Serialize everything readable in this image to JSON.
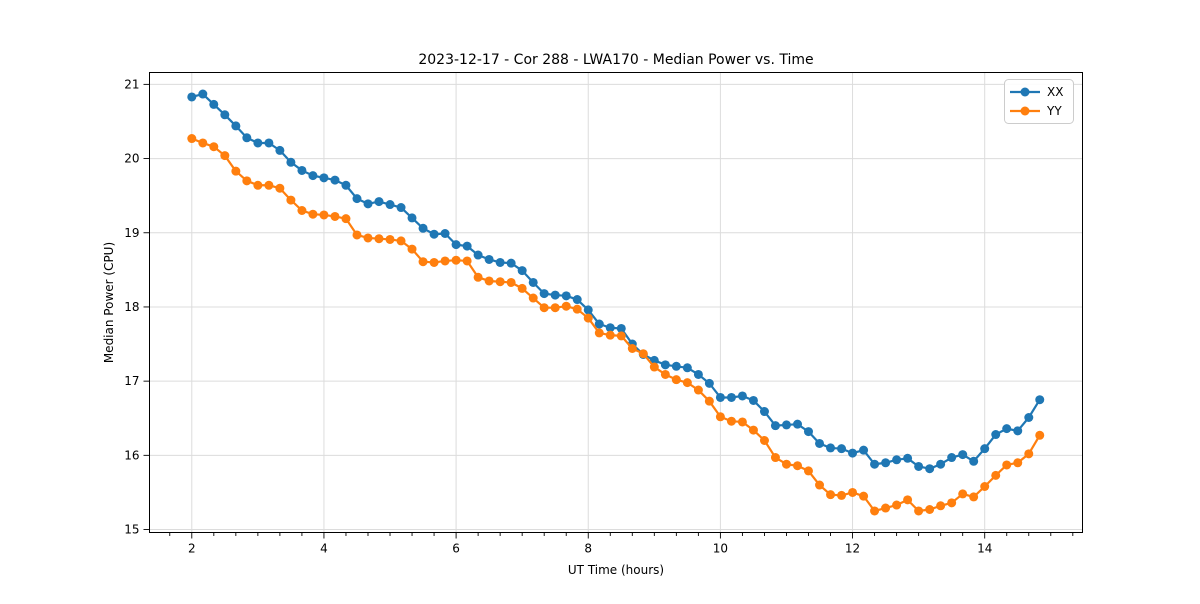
{
  "chart_data": {
    "type": "line",
    "title": "2023-12-17 - Cor 288 - LWA170 - Median Power vs. Time",
    "xlabel": "UT Time (hours)",
    "ylabel": "Median Power (CPU)",
    "xlim": [
      1.36,
      15.48
    ],
    "ylim": [
      14.96,
      21.16
    ],
    "xticks": [
      2,
      4,
      6,
      8,
      10,
      12,
      14
    ],
    "yticks": [
      15,
      16,
      17,
      18,
      19,
      20,
      21
    ],
    "minor_ticks_x_step": 0.3333,
    "grid": true,
    "legend_position": "upper right",
    "marker": "circle",
    "x": [
      2.0,
      2.167,
      2.333,
      2.5,
      2.667,
      2.833,
      3.0,
      3.167,
      3.333,
      3.5,
      3.667,
      3.833,
      4.0,
      4.167,
      4.333,
      4.5,
      4.667,
      4.833,
      5.0,
      5.167,
      5.333,
      5.5,
      5.667,
      5.833,
      6.0,
      6.167,
      6.333,
      6.5,
      6.667,
      6.833,
      7.0,
      7.167,
      7.333,
      7.5,
      7.667,
      7.833,
      8.0,
      8.167,
      8.333,
      8.5,
      8.667,
      8.833,
      9.0,
      9.167,
      9.333,
      9.5,
      9.667,
      9.833,
      10.0,
      10.167,
      10.333,
      10.5,
      10.667,
      10.833,
      11.0,
      11.167,
      11.333,
      11.5,
      11.667,
      11.833,
      12.0,
      12.167,
      12.333,
      12.5,
      12.667,
      12.833,
      13.0,
      13.167,
      13.333,
      13.5,
      13.667,
      13.833,
      14.0,
      14.167,
      14.333,
      14.5,
      14.667,
      14.833
    ],
    "series": [
      {
        "name": "XX",
        "color": "#1f77b4",
        "values": [
          20.83,
          20.87,
          20.73,
          20.59,
          20.44,
          20.28,
          20.21,
          20.21,
          20.11,
          19.95,
          19.84,
          19.77,
          19.74,
          19.71,
          19.64,
          19.46,
          19.39,
          19.42,
          19.38,
          19.34,
          19.2,
          19.06,
          18.98,
          18.99,
          18.84,
          18.82,
          18.7,
          18.64,
          18.6,
          18.59,
          18.49,
          18.33,
          18.18,
          18.16,
          18.15,
          18.1,
          17.96,
          17.77,
          17.72,
          17.71,
          17.5,
          17.36,
          17.28,
          17.22,
          17.2,
          17.18,
          17.09,
          16.97,
          16.78,
          16.78,
          16.8,
          16.74,
          16.59,
          16.4,
          16.41,
          16.42,
          16.32,
          16.16,
          16.1,
          16.09,
          16.03,
          16.07,
          15.88,
          15.9,
          15.94,
          15.96,
          15.85,
          15.82,
          15.88,
          15.97,
          16.01,
          15.92,
          16.09,
          16.28,
          16.36,
          16.33,
          16.51,
          16.75
        ]
      },
      {
        "name": "YY",
        "color": "#ff7f0e",
        "values": [
          20.27,
          20.21,
          20.16,
          20.04,
          19.83,
          19.7,
          19.64,
          19.64,
          19.6,
          19.44,
          19.3,
          19.25,
          19.24,
          19.22,
          19.19,
          18.97,
          18.93,
          18.92,
          18.91,
          18.89,
          18.78,
          18.61,
          18.6,
          18.62,
          18.63,
          18.62,
          18.4,
          18.35,
          18.34,
          18.33,
          18.25,
          18.12,
          17.99,
          17.99,
          18.01,
          17.97,
          17.85,
          17.65,
          17.62,
          17.61,
          17.44,
          17.37,
          17.19,
          17.09,
          17.02,
          16.98,
          16.88,
          16.73,
          16.52,
          16.46,
          16.45,
          16.34,
          16.2,
          15.97,
          15.88,
          15.86,
          15.79,
          15.6,
          15.47,
          15.46,
          15.5,
          15.45,
          15.25,
          15.29,
          15.33,
          15.4,
          15.25,
          15.27,
          15.32,
          15.36,
          15.48,
          15.44,
          15.58,
          15.73,
          15.87,
          15.9,
          16.02,
          16.27
        ]
      }
    ]
  }
}
